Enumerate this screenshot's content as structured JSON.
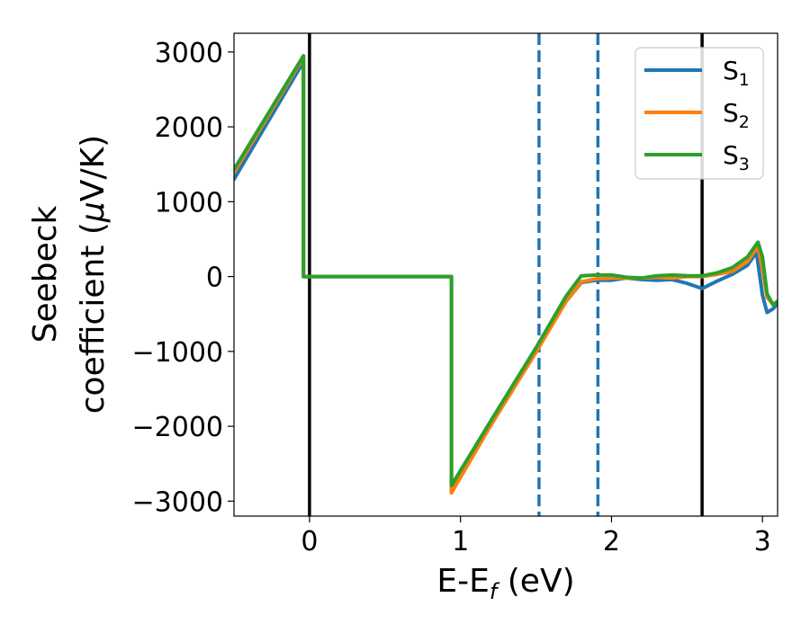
{
  "chart_data": {
    "type": "line",
    "title": "",
    "xlabel_main": "E-E",
    "xlabel_sub": "f",
    "xlabel_unit": " (eV)",
    "ylabel_line1": "Seebeck",
    "ylabel_line2_pre": "coefficient  (",
    "ylabel_line2_mu": "μ",
    "ylabel_line2_post": "V/K)",
    "xlim": [
      -0.5,
      3.1
    ],
    "ylim": [
      -3200,
      3250
    ],
    "xticks": [
      0,
      1,
      2,
      3
    ],
    "xtick_labels": [
      "0",
      "1",
      "2",
      "3"
    ],
    "yticks": [
      -3000,
      -2000,
      -1000,
      0,
      1000,
      2000,
      3000
    ],
    "ytick_labels": [
      "−3000",
      "−2000",
      "−1000",
      "0",
      "1000",
      "2000",
      "3000"
    ],
    "legend_position": "upper-right",
    "grid": false,
    "vlines": [
      {
        "x": 0.0,
        "style": "solid",
        "color": "#000000"
      },
      {
        "x": 2.6,
        "style": "solid",
        "color": "#000000"
      },
      {
        "x": 1.52,
        "style": "dashed",
        "color": "#1f77b4"
      },
      {
        "x": 1.91,
        "style": "dashed",
        "color": "#1f77b4"
      }
    ],
    "series": [
      {
        "name_main": "S",
        "name_sub": "1",
        "color": "#1f77b4",
        "x": [
          -0.5,
          -0.04,
          -0.04,
          0.94,
          0.94,
          1.2,
          1.5,
          1.7,
          1.8,
          1.9,
          2.0,
          2.1,
          2.2,
          2.3,
          2.4,
          2.5,
          2.6,
          2.7,
          2.8,
          2.9,
          2.96,
          3.0,
          3.03,
          3.07,
          3.1
        ],
        "y": [
          1300,
          2870,
          0,
          0,
          -2870,
          -1950,
          -990,
          -330,
          -80,
          -50,
          -50,
          -20,
          -40,
          -50,
          -40,
          -90,
          -160,
          -60,
          30,
          150,
          320,
          -250,
          -480,
          -430,
          -360
        ]
      },
      {
        "name_main": "S",
        "name_sub": "2",
        "color": "#ff7f0e",
        "x": [
          -0.5,
          -0.04,
          -0.04,
          0.94,
          0.94,
          1.2,
          1.5,
          1.7,
          1.8,
          1.9,
          2.0,
          2.1,
          2.2,
          2.3,
          2.4,
          2.5,
          2.6,
          2.7,
          2.8,
          2.9,
          2.97,
          3.0,
          3.03,
          3.07,
          3.1
        ],
        "y": [
          1390,
          2930,
          0,
          0,
          -2890,
          -1990,
          -1010,
          -330,
          -70,
          -30,
          -20,
          -20,
          -20,
          -10,
          -20,
          0,
          0,
          30,
          70,
          200,
          400,
          100,
          -280,
          -370,
          -330
        ]
      },
      {
        "name_main": "S",
        "name_sub": "3",
        "color": "#2ca02c",
        "x": [
          -0.5,
          -0.04,
          -0.04,
          0.94,
          0.94,
          1.2,
          1.5,
          1.7,
          1.8,
          1.9,
          2.0,
          2.1,
          2.2,
          2.3,
          2.4,
          2.5,
          2.6,
          2.7,
          2.8,
          2.9,
          2.97,
          3.0,
          3.03,
          3.07,
          3.1
        ],
        "y": [
          1430,
          2950,
          0,
          0,
          -2790,
          -1930,
          -950,
          -260,
          10,
          20,
          20,
          -10,
          -20,
          10,
          20,
          10,
          10,
          50,
          120,
          260,
          460,
          260,
          -230,
          -380,
          -330
        ]
      }
    ]
  }
}
